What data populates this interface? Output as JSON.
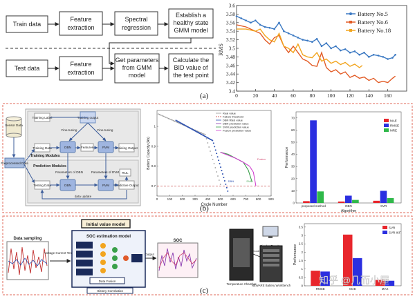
{
  "panel_a": {
    "label": "(a)",
    "flow": {
      "train_data": "Train data",
      "feature_extraction_1a": "Feature",
      "feature_extraction_1b": "extraction",
      "spectral_a": "Spectral",
      "spectral_b": "regression",
      "establish_a": "Establish a",
      "establish_b": "healthy state",
      "establish_c": "GMM model",
      "test_data": "Test data",
      "feature_extraction_2a": "Feature",
      "feature_extraction_2b": "extraction",
      "get_params_a": "Get parameters",
      "get_params_b": "from GMM",
      "get_params_c": "model",
      "calc_a": "Calculate the",
      "calc_b": "BID value of",
      "calc_c": "the test point"
    }
  },
  "chart_data": [
    {
      "type": "line",
      "ylabel": "RMS",
      "xlim": [
        0,
        180
      ],
      "ylim": [
        3.4,
        3.6
      ],
      "x_ticks": [
        "0",
        "20",
        "40",
        "60",
        "80",
        "100",
        "120",
        "140",
        "160"
      ],
      "y_ticks": [
        "3.4",
        "3.42",
        "3.44",
        "3.46",
        "3.48",
        "3.5",
        "3.52",
        "3.54",
        "3.56",
        "3.58",
        "3.6"
      ],
      "legend_position": "top-right",
      "series": [
        {
          "name": "Battery No.5",
          "color": "#3a78c2",
          "marker": "circle",
          "x": [
            0,
            5,
            10,
            15,
            20,
            25,
            30,
            35,
            40,
            45,
            50,
            55,
            60,
            65,
            70,
            75,
            80,
            85,
            90,
            95,
            100,
            105,
            110,
            115,
            120,
            125,
            130,
            135,
            140,
            145,
            150,
            155,
            160,
            165,
            168
          ],
          "y": [
            3.575,
            3.57,
            3.565,
            3.56,
            3.565,
            3.555,
            3.55,
            3.548,
            3.545,
            3.56,
            3.54,
            3.535,
            3.53,
            3.525,
            3.52,
            3.518,
            3.515,
            3.522,
            3.505,
            3.512,
            3.5,
            3.505,
            3.495,
            3.498,
            3.49,
            3.493,
            3.485,
            3.49,
            3.48,
            3.485,
            3.483,
            3.48,
            3.475,
            3.478,
            3.485
          ]
        },
        {
          "name": "Battery No.6",
          "color": "#e25a24",
          "marker": "none",
          "x": [
            0,
            10,
            20,
            25,
            30,
            35,
            40,
            45,
            50,
            55,
            60,
            65,
            70,
            75,
            80,
            85,
            90,
            95,
            100,
            105,
            110,
            115,
            120,
            125,
            130,
            135,
            140,
            145,
            150,
            155,
            160,
            165,
            168
          ],
          "y": [
            3.555,
            3.55,
            3.54,
            3.535,
            3.52,
            3.51,
            3.525,
            3.53,
            3.505,
            3.49,
            3.505,
            3.49,
            3.475,
            3.47,
            3.46,
            3.458,
            3.49,
            3.455,
            3.445,
            3.45,
            3.44,
            3.445,
            3.432,
            3.437,
            3.43,
            3.433,
            3.425,
            3.43,
            3.42,
            3.423,
            3.42,
            3.43,
            3.435
          ]
        },
        {
          "name": "Battery No.18",
          "color": "#f2a51f",
          "marker": "none",
          "x": [
            0,
            10,
            20,
            25,
            30,
            35,
            40,
            45,
            50,
            55,
            60,
            65,
            70,
            75,
            80,
            85,
            90,
            95,
            100,
            105,
            110,
            115,
            120,
            125,
            130,
            133
          ],
          "y": [
            3.545,
            3.545,
            3.54,
            3.545,
            3.53,
            3.52,
            3.515,
            3.535,
            3.505,
            3.5,
            3.49,
            3.51,
            3.485,
            3.48,
            3.478,
            3.49,
            3.47,
            3.475,
            3.465,
            3.47,
            3.462,
            3.467,
            3.458,
            3.463,
            3.455,
            3.46
          ]
        }
      ]
    },
    {
      "type": "line",
      "ylabel": "Battery Capacity (Ah)",
      "xlabel": "Cycle Number",
      "x_ticks": [
        "0",
        "100",
        "200",
        "300",
        "400",
        "500",
        "600",
        "700",
        "800",
        "900"
      ],
      "y_ticks": [
        "0.7",
        "0.8",
        "0.9",
        "1"
      ],
      "legend": [
        "Real value",
        "Failure threshold",
        "DBN fitted value",
        "DBN prediction value",
        "SVM prediction value",
        "Fusion prediction value"
      ],
      "annotations": [
        "DBN",
        "SVM",
        "Fusion"
      ]
    },
    {
      "type": "bar",
      "ylabel": "Performance",
      "xlabel": "Algorithm",
      "categories": [
        "proposed method",
        "DBN",
        "SVR"
      ],
      "y_ticks": [
        "0",
        "10",
        "20",
        "30",
        "40",
        "50",
        "60",
        "70"
      ],
      "ylim": [
        0,
        75
      ],
      "series": [
        {
          "name": "MAE",
          "color": "#e8262c",
          "values": [
            1.5,
            1.2,
            1.8
          ]
        },
        {
          "name": "RMSE",
          "color": "#2b2fe0",
          "values": [
            68,
            6,
            10
          ]
        },
        {
          "name": "MRE",
          "color": "#2fb84a",
          "values": [
            9.5,
            2.5,
            4
          ]
        }
      ]
    },
    {
      "type": "bar",
      "ylabel": "Performance",
      "categories": [
        "RMSE",
        "MAE",
        "MAX"
      ],
      "y_ticks": [
        "0",
        "0.5",
        "1",
        "1.5",
        "2",
        "2.5",
        "3",
        "3.5"
      ],
      "ylim": [
        0,
        3.7
      ],
      "series": [
        {
          "name": "SVR",
          "color": "#e8262c",
          "values": [
            0.9,
            3.05,
            0.35
          ]
        },
        {
          "name": "SVR-IKF",
          "color": "#2b2fe0",
          "values": [
            0.85,
            1.65,
            0.3
          ]
        }
      ]
    }
  ],
  "panel_b": {
    "label": "(b)",
    "diagram": {
      "sensor_data": "Sensor Data",
      "preprocessed_data": "Preprocessed Data",
      "training_label": "Training Label",
      "training_output": "Training output",
      "training_data": "Training Data",
      "fine_tuning_1": "Fine-tuning",
      "fine_tuning_2": "Fine-tuning",
      "dbn_1": "DBN",
      "features": "Features",
      "rvm_1": "RVM",
      "training_output_2": "Training Output",
      "training_modules": "Training Modules",
      "prediction_modules": "Prediction Modules",
      "params_dbn": "Parameters of DBN",
      "params_rvm": "Parameters of RVM",
      "rul": "RUL",
      "testing_data": "Testing Data",
      "dbn_2": "DBN",
      "rvm_2": "RVM",
      "predictive_output": "Predictive Output",
      "data_update": "data update"
    }
  },
  "panel_c": {
    "label": "(c)",
    "initial_value_model": "Initial value model",
    "data_sampling": "Data sampling",
    "soc_estimation_model": "SOC estimation model",
    "inputs": "Voltage Current Temperature",
    "data_fusion": "Data Fusion",
    "soc_title": "SOC",
    "output_label": "Output",
    "history_correlation": "History Correlation",
    "temperature_chamber": "Temperature Chamber",
    "battery_workbench": "NEWARE Battery Workbench",
    "display_label": "Display Results",
    "control_label": "Control",
    "watermark": "知乎 @几而小屋"
  },
  "colors": {
    "border_red": "#e06a5a",
    "navy": "#1a2a5a",
    "battery5": "#3a78c2",
    "battery6": "#e25a24",
    "battery18": "#f2a51f"
  }
}
